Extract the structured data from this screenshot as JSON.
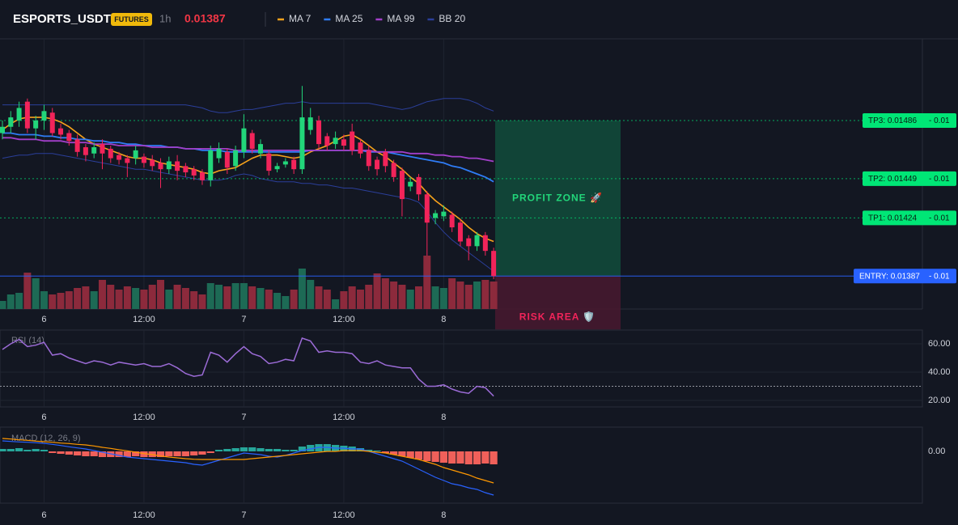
{
  "chart_data": [
    {
      "type": "candlestick",
      "title": "ESPORTS_USDT",
      "badge": "FUTURES",
      "interval": "1h",
      "last_price": 0.01387,
      "categories": [
        null,
        null,
        null,
        null,
        null,
        "6",
        null,
        null,
        null,
        null,
        null,
        null,
        null,
        null,
        null,
        null,
        null,
        "12:00",
        null,
        null,
        null,
        null,
        null,
        null,
        null,
        null,
        null,
        null,
        null,
        "7",
        null,
        null,
        null,
        null,
        null,
        null,
        null,
        null,
        null,
        null,
        null,
        "12:00",
        null,
        null,
        null,
        null,
        null,
        null,
        null,
        null,
        null,
        null,
        null,
        "8",
        null,
        null,
        null,
        null,
        null,
        null
      ],
      "open": [
        0.01478,
        0.01482,
        0.01486,
        0.01498,
        0.01481,
        0.01486,
        0.01491,
        0.01481,
        0.01478,
        0.01474,
        0.01469,
        0.01465,
        0.01471,
        0.01468,
        0.01464,
        0.01462,
        0.01462,
        0.01463,
        0.01461,
        0.01459,
        0.01455,
        0.0146,
        0.01457,
        0.01455,
        0.01453,
        0.01448,
        0.01462,
        0.01466,
        0.01457,
        0.01466,
        0.01478,
        0.01465,
        0.01465,
        0.01455,
        0.01458,
        0.01461,
        0.01455,
        0.0148,
        0.01486,
        0.01476,
        0.01471,
        0.01474,
        0.01479,
        0.01472,
        0.01467,
        0.01461,
        0.01466,
        0.01459,
        0.01454,
        0.01444,
        0.0145,
        0.01439,
        0.01424,
        0.01425,
        0.01426,
        0.01421,
        0.01411,
        0.01406,
        0.01413,
        0.01403
      ],
      "high": [
        0.01486,
        0.01492,
        0.01498,
        0.015,
        0.01489,
        0.01496,
        0.01494,
        0.01484,
        0.0148,
        0.01477,
        0.01471,
        0.01472,
        0.01474,
        0.0147,
        0.01466,
        0.01464,
        0.0147,
        0.01465,
        0.01464,
        0.01462,
        0.01463,
        0.01464,
        0.01459,
        0.01457,
        0.01455,
        0.0147,
        0.01472,
        0.01468,
        0.0147,
        0.0149,
        0.0148,
        0.01474,
        0.01467,
        0.01459,
        0.01462,
        0.01463,
        0.01508,
        0.01494,
        0.01489,
        0.01478,
        0.01479,
        0.01477,
        0.01484,
        0.01474,
        0.0147,
        0.01463,
        0.01468,
        0.01461,
        0.01456,
        0.0145,
        0.01452,
        0.01441,
        0.01429,
        0.01432,
        0.01428,
        0.01423,
        0.01413,
        0.01415,
        0.01415,
        0.01405
      ],
      "low": [
        0.01474,
        0.01478,
        0.01482,
        0.01478,
        0.01474,
        0.0148,
        0.01476,
        0.01474,
        0.0147,
        0.01463,
        0.0146,
        0.01462,
        0.01455,
        0.01459,
        0.01458,
        0.0145,
        0.01458,
        0.01456,
        0.01454,
        0.01443,
        0.01452,
        0.01448,
        0.0145,
        0.01448,
        0.01445,
        0.01444,
        0.01459,
        0.01452,
        0.01454,
        0.01462,
        0.01465,
        0.01462,
        0.01451,
        0.01453,
        0.01456,
        0.01452,
        0.01452,
        0.01477,
        0.01468,
        0.01467,
        0.01468,
        0.01467,
        0.01464,
        0.01462,
        0.01454,
        0.01451,
        0.01453,
        0.01447,
        0.01425,
        0.01441,
        0.01435,
        0.014,
        0.0142,
        0.01422,
        0.01415,
        0.01406,
        0.01397,
        0.01403,
        0.014,
        0.01385
      ],
      "close": [
        0.01482,
        0.01488,
        0.01494,
        0.01481,
        0.01486,
        0.01492,
        0.01478,
        0.01477,
        0.01473,
        0.01466,
        0.01464,
        0.01469,
        0.01465,
        0.01462,
        0.01461,
        0.01459,
        0.01467,
        0.01459,
        0.01457,
        0.01455,
        0.0146,
        0.01454,
        0.01453,
        0.01451,
        0.01448,
        0.01467,
        0.01468,
        0.01456,
        0.01467,
        0.01481,
        0.01468,
        0.01471,
        0.01454,
        0.01457,
        0.0146,
        0.01455,
        0.01488,
        0.01488,
        0.01471,
        0.0147,
        0.01475,
        0.0147,
        0.01467,
        0.01465,
        0.01457,
        0.01455,
        0.01457,
        0.0145,
        0.01436,
        0.01447,
        0.01439,
        0.01421,
        0.01427,
        0.01428,
        0.01418,
        0.01409,
        0.01406,
        0.01413,
        0.01403,
        0.01387
      ],
      "volume": [
        20,
        36,
        40,
        90,
        76,
        44,
        36,
        40,
        44,
        52,
        56,
        44,
        72,
        60,
        48,
        56,
        52,
        48,
        60,
        72,
        48,
        60,
        52,
        44,
        36,
        64,
        60,
        56,
        64,
        64,
        56,
        52,
        48,
        40,
        32,
        48,
        100,
        72,
        56,
        48,
        24,
        44,
        56,
        48,
        60,
        88,
        76,
        68,
        60,
        48,
        56,
        132,
        56,
        52,
        76,
        68,
        60,
        68,
        72,
        68
      ],
      "volume_ylim": [
        0,
        200
      ],
      "up_color": "#22d67a",
      "down_color": "#f2245a",
      "volume_up_color": "#1d6a55",
      "volume_down_color": "#8c2a3c",
      "ylim": [
        0.01366,
        0.01538
      ],
      "series": [
        {
          "name": "MA 7",
          "color": "#f7a21b",
          "values": [
            0.0148,
            0.01484,
            0.01487,
            0.01488,
            0.01488,
            0.01488,
            0.01487,
            0.01485,
            0.01482,
            0.01478,
            0.01474,
            0.01471,
            0.01469,
            0.01467,
            0.01465,
            0.01463,
            0.01462,
            0.01462,
            0.01461,
            0.01459,
            0.01458,
            0.01457,
            0.01456,
            0.01455,
            0.01453,
            0.01452,
            0.01454,
            0.01455,
            0.01456,
            0.01459,
            0.01462,
            0.01464,
            0.01464,
            0.01464,
            0.01463,
            0.01462,
            0.01463,
            0.01466,
            0.01468,
            0.0147,
            0.01473,
            0.01476,
            0.01477,
            0.01474,
            0.0147,
            0.01466,
            0.01463,
            0.01459,
            0.01455,
            0.0145,
            0.01446,
            0.0144,
            0.01435,
            0.01431,
            0.01427,
            0.01423,
            0.01418,
            0.01414,
            0.01411,
            0.01409
          ]
        },
        {
          "name": "MA 25",
          "color": "#2f7cf6",
          "values": [
            0.01478,
            0.01478,
            0.01477,
            0.01477,
            0.01477,
            0.01476,
            0.01476,
            0.01475,
            0.01475,
            0.01474,
            0.01474,
            0.01473,
            0.01473,
            0.01472,
            0.01472,
            0.01471,
            0.01471,
            0.0147,
            0.0147,
            0.0147,
            0.01469,
            0.01469,
            0.01468,
            0.01468,
            0.01467,
            0.01467,
            0.01467,
            0.01466,
            0.01466,
            0.01466,
            0.01466,
            0.01466,
            0.01466,
            0.01466,
            0.01466,
            0.01466,
            0.01466,
            0.01467,
            0.01467,
            0.01467,
            0.01467,
            0.01467,
            0.01467,
            0.01467,
            0.01466,
            0.01466,
            0.01466,
            0.01465,
            0.01464,
            0.01463,
            0.01462,
            0.01461,
            0.0146,
            0.01459,
            0.01457,
            0.01456,
            0.01454,
            0.01452,
            0.0145,
            0.01447
          ]
        },
        {
          "name": "MA 99",
          "color": "#a23fc9",
          "values": [
            0.01475,
            0.01475,
            0.01474,
            0.01474,
            0.01474,
            0.01473,
            0.01473,
            0.01473,
            0.01472,
            0.01472,
            0.01472,
            0.01471,
            0.01471,
            0.01471,
            0.0147,
            0.0147,
            0.0147,
            0.0147,
            0.01469,
            0.01469,
            0.01469,
            0.01469,
            0.01468,
            0.01468,
            0.01468,
            0.01468,
            0.01468,
            0.01468,
            0.01467,
            0.01467,
            0.01467,
            0.01467,
            0.01467,
            0.01467,
            0.01467,
            0.01467,
            0.01467,
            0.01467,
            0.01467,
            0.01467,
            0.01467,
            0.01467,
            0.01467,
            0.01467,
            0.01467,
            0.01466,
            0.01466,
            0.01466,
            0.01466,
            0.01465,
            0.01465,
            0.01465,
            0.01464,
            0.01464,
            0.01463,
            0.01463,
            0.01462,
            0.01462,
            0.01461,
            0.0146
          ]
        }
      ],
      "bands": [
        {
          "name": "BB 20",
          "color": "#2b3f9a",
          "upper": [
            0.01496,
            0.01496,
            0.01496,
            0.01496,
            0.01496,
            0.01496,
            0.01496,
            0.01496,
            0.01496,
            0.01496,
            0.01496,
            0.01496,
            0.01496,
            0.01496,
            0.01496,
            0.01496,
            0.01496,
            0.01496,
            0.01496,
            0.01496,
            0.01496,
            0.01496,
            0.01496,
            0.01495,
            0.01494,
            0.01492,
            0.01491,
            0.01491,
            0.01492,
            0.01493,
            0.01493,
            0.01494,
            0.01495,
            0.01496,
            0.01497,
            0.01497,
            0.01498,
            0.01497,
            0.01497,
            0.01497,
            0.01497,
            0.01497,
            0.01497,
            0.01497,
            0.01497,
            0.01496,
            0.01495,
            0.01494,
            0.01493,
            0.01494,
            0.01496,
            0.01498,
            0.01499,
            0.015,
            0.015,
            0.015,
            0.01499,
            0.01497,
            0.01494,
            0.01492
          ],
          "lower": [
            0.01462,
            0.01463,
            0.01464,
            0.01464,
            0.01465,
            0.01465,
            0.01465,
            0.01464,
            0.01463,
            0.01462,
            0.01461,
            0.0146,
            0.01459,
            0.01458,
            0.01457,
            0.01456,
            0.01455,
            0.01455,
            0.01454,
            0.01453,
            0.01452,
            0.01451,
            0.0145,
            0.01449,
            0.01448,
            0.01448,
            0.01448,
            0.01449,
            0.01451,
            0.01452,
            0.01451,
            0.01449,
            0.01448,
            0.01447,
            0.01447,
            0.01447,
            0.01446,
            0.01446,
            0.01445,
            0.01445,
            0.01444,
            0.01443,
            0.01443,
            0.01442,
            0.01441,
            0.0144,
            0.01439,
            0.01438,
            0.01437,
            0.01436,
            0.01434,
            0.01428,
            0.01421,
            0.01415,
            0.0141,
            0.01406,
            0.01402,
            0.01398,
            0.01394,
            0.0139
          ]
        }
      ],
      "levels": [
        {
          "label": "TP3: 0.01486",
          "value": 0.01486,
          "suffix": "- 0.01",
          "color": "#00e676",
          "style": "dotted"
        },
        {
          "label": "TP2: 0.01449",
          "value": 0.01449,
          "suffix": "- 0.01",
          "color": "#00e676",
          "style": "dotted"
        },
        {
          "label": "TP1: 0.01424",
          "value": 0.01424,
          "suffix": "- 0.01",
          "color": "#00e676",
          "style": "dotted"
        },
        {
          "label": "ENTRY: 0.01387",
          "value": 0.01387,
          "suffix": "- 0.01",
          "color": "#2962ff",
          "style": "solid"
        }
      ],
      "zones": [
        {
          "label": "PROFIT ZONE 🚀",
          "from": 0.01486,
          "to": 0.01387,
          "color": "#12493a",
          "text_color": "#22d67a"
        },
        {
          "label": "RISK AREA 🛡️",
          "from": 0.01387,
          "to": 0.01353,
          "color": "#46182f",
          "text_color": "#f2245a"
        }
      ]
    },
    {
      "type": "line",
      "title": "RSI (14)",
      "color": "#9b6bd6",
      "values": [
        56,
        60,
        63,
        58,
        59,
        61,
        52,
        53,
        50,
        48,
        46,
        48,
        47,
        45,
        47,
        46,
        45,
        46,
        44,
        44,
        46,
        43,
        39,
        37,
        38,
        54,
        52,
        47,
        53,
        58,
        53,
        51,
        46,
        47,
        49,
        48,
        64,
        62,
        54,
        55,
        54,
        54,
        53,
        47,
        46,
        48,
        45,
        44,
        43,
        43,
        35,
        30,
        30,
        31,
        28,
        26,
        25,
        30,
        29,
        23
      ],
      "ylim": [
        15.4,
        69.7
      ],
      "yticks": [
        {
          "value": 60,
          "label": "60.00"
        },
        {
          "value": 40,
          "label": "40.00"
        },
        {
          "value": 20,
          "label": "20.00"
        }
      ],
      "levels": [
        30
      ]
    },
    {
      "type": "macd",
      "title": "MACD (12, 26, 9)",
      "macd": {
        "color": "#2962ff",
        "values": [
          3.9e-05,
          3.7e-05,
          3.5e-05,
          3.4e-05,
          3.2e-05,
          3e-05,
          2.6e-05,
          2.2e-05,
          1.7e-05,
          1.3e-05,
          9e-06,
          3e-06,
          -3e-06,
          -9e-06,
          -1.5e-05,
          -2.1e-05,
          -2.4e-05,
          -2.7e-05,
          -3e-05,
          -3.3e-05,
          -3.6e-05,
          -3.9e-05,
          -4.2e-05,
          -4.8e-05,
          -5.1e-05,
          -4.2e-05,
          -3.3e-05,
          -2.4e-05,
          -1.5e-05,
          -6e-06,
          -9e-06,
          -1.2e-05,
          -1.8e-05,
          -2.1e-05,
          -1.5e-05,
          -6e-06,
          3e-06,
          9e-06,
          1.5e-05,
          1.5e-05,
          1.2e-05,
          1.2e-05,
          9e-06,
          9e-06,
          0,
          -9e-06,
          -1.8e-05,
          -2.7e-05,
          -3.6e-05,
          -5.1e-05,
          -6.6e-05,
          -8.1e-05,
          -9.6e-05,
          -0.000108,
          -0.00012,
          -0.000126,
          -0.000135,
          -0.000141,
          -0.000153,
          -0.000162
        ]
      },
      "signal": {
        "color": "#ff9800",
        "values": [
          4.8e-05,
          4.6e-05,
          4.3e-05,
          4.1e-05,
          3.8e-05,
          3.6e-05,
          3.4e-05,
          3.1e-05,
          2.9e-05,
          2.6e-05,
          2.4e-05,
          2e-05,
          1.5e-05,
          1.1e-05,
          6e-06,
          2e-06,
          -3e-06,
          -8e-06,
          -1.2e-05,
          -1.7e-05,
          -2.1e-05,
          -2.4e-05,
          -2.7e-05,
          -2.9e-05,
          -3e-05,
          -3e-05,
          -3e-05,
          -3e-05,
          -3e-05,
          -3e-05,
          -2.7e-05,
          -2.4e-05,
          -2.1e-05,
          -1.8e-05,
          -1.5e-05,
          -1.2e-05,
          -9e-06,
          -6e-06,
          -3e-06,
          0,
          0,
          3e-06,
          3e-06,
          3e-06,
          0,
          -3e-06,
          -6e-06,
          -1.2e-05,
          -1.8e-05,
          -2.4e-05,
          -3e-05,
          -3.9e-05,
          -4.8e-05,
          -6e-05,
          -6.9e-05,
          -7.8e-05,
          -8.7e-05,
          -9.9e-05,
          -0.000108,
          -0.000117
        ]
      },
      "histogram": {
        "up_color": "#26a69a",
        "down_color": "#f0605a",
        "values": [
          9e-06,
          9e-06,
          1.2e-05,
          6e-06,
          9e-06,
          6e-06,
          -6e-06,
          -9e-06,
          -1.2e-05,
          -1.5e-05,
          -1.8e-05,
          -1.8e-05,
          -2.1e-05,
          -2.1e-05,
          -2.1e-05,
          -2.1e-05,
          -1.8e-05,
          -2.1e-05,
          -2.1e-05,
          -2.1e-05,
          -1.8e-05,
          -1.8e-05,
          -1.8e-05,
          -1.5e-05,
          -1.2e-05,
          -6e-06,
          6e-06,
          9e-06,
          1.2e-05,
          1.5e-05,
          1.5e-05,
          1.2e-05,
          9e-06,
          9e-06,
          6e-06,
          6e-06,
          1.8e-05,
          2.4e-05,
          2.7e-05,
          2.7e-05,
          2.4e-05,
          2.1e-05,
          1.8e-05,
          1.2e-05,
          6e-06,
          3e-06,
          -6e-06,
          -1.2e-05,
          -1.8e-05,
          -2.4e-05,
          -3e-05,
          -3.6e-05,
          -3.9e-05,
          -4.2e-05,
          -4.5e-05,
          -4.5e-05,
          -4.8e-05,
          -4.8e-05,
          -4.5e-05,
          -4.8e-05
        ]
      },
      "ylim": [
        -0.000192,
        9e-05
      ],
      "yticks": [
        {
          "value": 0,
          "label": "0.00"
        }
      ]
    }
  ]
}
